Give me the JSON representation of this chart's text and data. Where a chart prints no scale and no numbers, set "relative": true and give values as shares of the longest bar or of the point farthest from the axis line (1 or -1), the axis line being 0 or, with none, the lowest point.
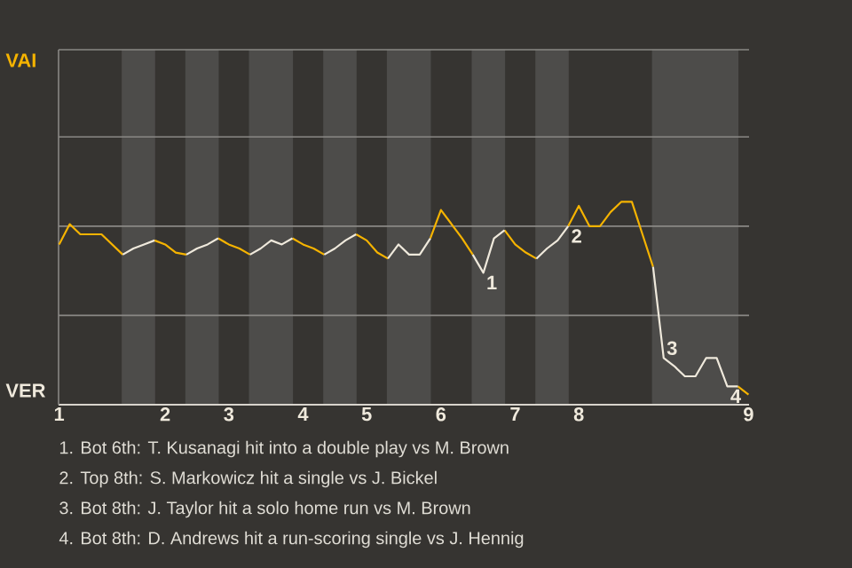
{
  "chart_data": {
    "type": "line",
    "relative": true,
    "categories": [
      "1",
      null,
      null,
      null,
      null,
      null,
      null,
      null,
      null,
      null,
      "2",
      null,
      null,
      null,
      null,
      null,
      "3",
      null,
      null,
      null,
      null,
      null,
      null,
      "4",
      null,
      null,
      null,
      null,
      null,
      "5",
      null,
      null,
      null,
      null,
      null,
      null,
      "6",
      null,
      null,
      null,
      null,
      null,
      null,
      "7",
      null,
      null,
      null,
      null,
      null,
      "8",
      null,
      null,
      null,
      null,
      null,
      null,
      null,
      null,
      null,
      null,
      null,
      null,
      null,
      null,
      null,
      "9"
    ],
    "ref_lines": [
      {
        "axis": "y",
        "value": 0.44,
        "color": "#8a8885"
      },
      {
        "axis": "y",
        "value": 0.88,
        "color": "#8a8885"
      },
      {
        "axis": "y",
        "value": 1.32,
        "color": "#8a8885"
      },
      {
        "axis": "y",
        "value": 1.75,
        "color": "#8a8885"
      }
    ],
    "series": [
      {
        "color": "#f5b300",
        "values": [
          0.79,
          0.89,
          0.84,
          0.84,
          0.84,
          0.79,
          0.74,
          null,
          null,
          0.81,
          0.79,
          0.75,
          0.74,
          null,
          null,
          0.82,
          0.79,
          0.77,
          0.74,
          null,
          null,
          null,
          0.82,
          0.79,
          0.77,
          0.74,
          null,
          null,
          0.84,
          0.81,
          0.75,
          0.72,
          null,
          null,
          null,
          0.82,
          0.96,
          0.89,
          0.82,
          0.74,
          null,
          null,
          0.86,
          0.79,
          0.75,
          0.72,
          null,
          null,
          0.88,
          0.98,
          0.88,
          0.88,
          0.95,
          1,
          1,
          0.84,
          0.68,
          null,
          null,
          null,
          null,
          null,
          null,
          null,
          0.09,
          0.05
        ]
      },
      {
        "color": "#efe9dc",
        "values": [
          null,
          null,
          null,
          null,
          null,
          null,
          0.74,
          0.77,
          0.79,
          0.81,
          null,
          null,
          0.74,
          0.77,
          0.79,
          0.82,
          null,
          null,
          0.74,
          0.77,
          0.81,
          0.79,
          0.82,
          null,
          null,
          0.74,
          0.77,
          0.81,
          0.84,
          null,
          null,
          0.72,
          0.79,
          0.74,
          0.74,
          0.82,
          null,
          null,
          null,
          0.74,
          0.65,
          0.82,
          0.86,
          null,
          null,
          0.72,
          0.77,
          0.81,
          0.88,
          null,
          null,
          null,
          null,
          null,
          null,
          null,
          0.68,
          0.23,
          0.19,
          0.14,
          0.14,
          0.23,
          0.23,
          0.09,
          0.09,
          null
        ]
      }
    ],
    "annotations": [
      {
        "text": "1",
        "y": 0.65
      },
      {
        "text": "2",
        "y": 0.88
      },
      {
        "text": "3",
        "y": 0.23
      },
      {
        "text": "4",
        "y": 0.09
      },
      "VAI",
      "VER",
      "1. Bot 6th: T. Kusanagi hit into a double play vs M. Brown",
      "2. Top 8th: S. Markowicz hit a single vs J. Bickel",
      "3. Bot 8th: J. Taylor hit a solo home run vs M. Brown",
      "4. Bot 8th: D. Andrews hit a run-scoring single vs J. Hennig"
    ]
  }
}
